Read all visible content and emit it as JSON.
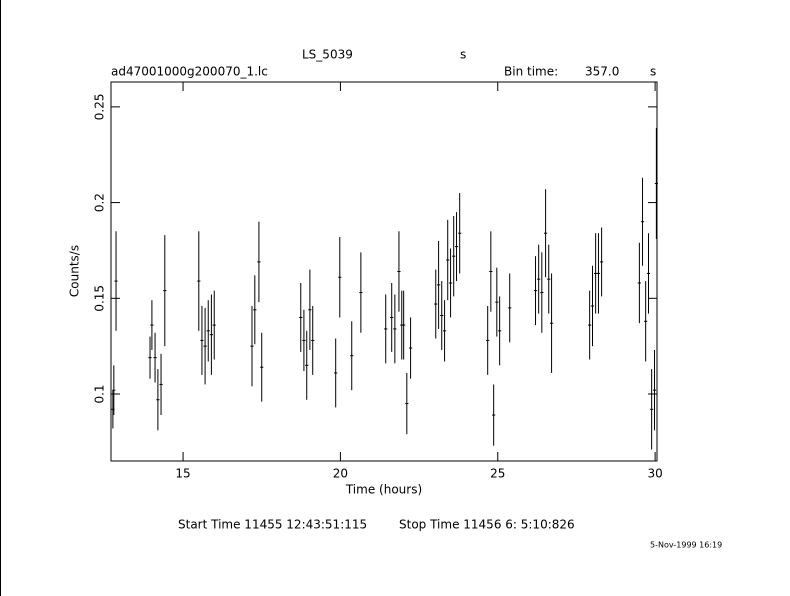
{
  "chart_data": {
    "type": "errorbar",
    "title": "LS_5039",
    "title_unit": "s",
    "file_name": "ad47001000g200070_1.lc",
    "bin_time_label": "Bin time:",
    "bin_time": "357.0",
    "bin_time_unit": "s",
    "x_label": "Time (hours)",
    "y_label": "Counts/s",
    "start_time": "Start Time 11455 12:43:51:115",
    "stop_time": "Stop Time 11456  6: 5:10:826",
    "date_stamp": "5-Nov-1999 16:19",
    "color": "#000000",
    "xlim": [
      12.71,
      30.06
    ],
    "xticks": [
      15,
      20,
      25,
      30
    ],
    "ylim": [
      0.065,
      0.263
    ],
    "yticks": [
      0.1,
      0.15,
      0.2,
      0.25
    ],
    "x": [
      12.77,
      12.8,
      12.87,
      13.95,
      14.01,
      14.11,
      14.2,
      14.3,
      14.42,
      15.5,
      15.6,
      15.7,
      15.8,
      15.9,
      15.99,
      17.19,
      17.28,
      17.41,
      17.5,
      18.74,
      18.84,
      18.93,
      19.03,
      19.12,
      19.85,
      19.98,
      20.36,
      20.65,
      21.44,
      21.63,
      21.73,
      21.86,
      21.95,
      22.01,
      22.11,
      22.23,
      23.03,
      23.12,
      23.22,
      23.31,
      23.41,
      23.5,
      23.6,
      23.69,
      23.79,
      24.68,
      24.78,
      24.87,
      24.97,
      25.06,
      25.38,
      26.2,
      26.3,
      26.4,
      26.52,
      26.62,
      26.71,
      27.92,
      28.01,
      28.11,
      28.2,
      28.3,
      29.5,
      29.6,
      29.7,
      29.79,
      29.89,
      29.98,
      30.04
    ],
    "values": [
      0.092,
      0.102,
      0.159,
      0.119,
      0.136,
      0.119,
      0.097,
      0.105,
      0.154,
      0.159,
      0.128,
      0.125,
      0.133,
      0.131,
      0.136,
      0.125,
      0.144,
      0.169,
      0.114,
      0.14,
      0.128,
      0.115,
      0.144,
      0.128,
      0.111,
      0.161,
      0.12,
      0.153,
      0.134,
      0.14,
      0.134,
      0.164,
      0.136,
      0.136,
      0.095,
      0.124,
      0.147,
      0.157,
      0.141,
      0.133,
      0.17,
      0.158,
      0.172,
      0.177,
      0.184,
      0.128,
      0.164,
      0.089,
      0.148,
      0.133,
      0.145,
      0.154,
      0.16,
      0.153,
      0.184,
      0.16,
      0.137,
      0.136,
      0.146,
      0.163,
      0.163,
      0.169,
      0.158,
      0.19,
      0.138,
      0.163,
      0.092,
      0.102,
      0.21
    ],
    "errors": [
      0.01,
      0.013,
      0.026,
      0.011,
      0.013,
      0.013,
      0.016,
      0.016,
      0.029,
      0.026,
      0.018,
      0.02,
      0.016,
      0.021,
      0.018,
      0.021,
      0.018,
      0.021,
      0.018,
      0.018,
      0.016,
      0.018,
      0.021,
      0.018,
      0.018,
      0.021,
      0.018,
      0.021,
      0.018,
      0.018,
      0.018,
      0.021,
      0.018,
      0.018,
      0.016,
      0.016,
      0.018,
      0.023,
      0.018,
      0.016,
      0.021,
      0.018,
      0.021,
      0.018,
      0.021,
      0.018,
      0.021,
      0.016,
      0.018,
      0.018,
      0.018,
      0.018,
      0.018,
      0.021,
      0.023,
      0.018,
      0.026,
      0.018,
      0.021,
      0.021,
      0.021,
      0.018,
      0.021,
      0.023,
      0.021,
      0.021,
      0.021,
      0.021,
      0.029
    ]
  }
}
